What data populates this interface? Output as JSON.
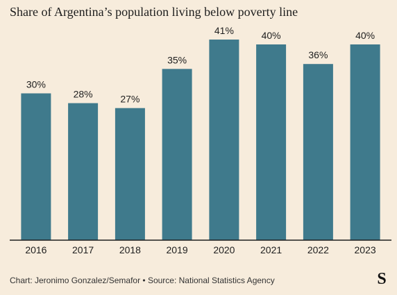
{
  "title": "Share of Argentina’s population living below poverty line",
  "source": "Chart: Jeronimo Gonzalez/Semafor • Source: National Statistics Agency",
  "logo_text": "S",
  "colors": {
    "bar": "#3f7a8c",
    "axis": "#1e1e1e",
    "background": "#f7ecdc"
  },
  "chart_data": {
    "type": "bar",
    "categories": [
      "2016",
      "2017",
      "2018",
      "2019",
      "2020",
      "2021",
      "2022",
      "2023"
    ],
    "values": [
      30,
      28,
      27,
      35,
      41,
      40,
      36,
      40
    ],
    "labels": [
      "30%",
      "28%",
      "27%",
      "35%",
      "41%",
      "40%",
      "36%",
      "40%"
    ],
    "title": "Share of Argentina’s population living below poverty line",
    "xlabel": "",
    "ylabel": "",
    "ylim": [
      0,
      41
    ],
    "grid": false,
    "legend": "none"
  }
}
